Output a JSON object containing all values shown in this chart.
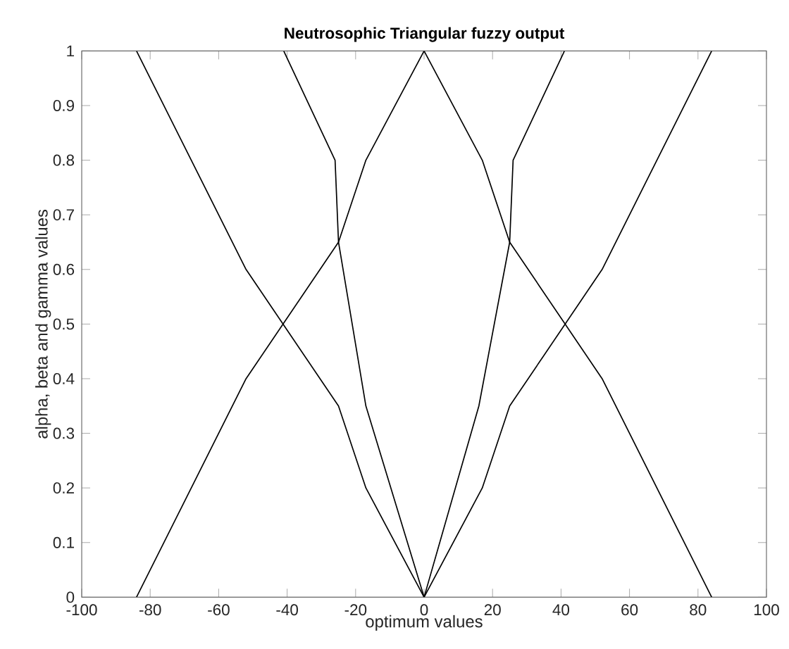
{
  "chart_data": {
    "type": "line",
    "title": "Neutrosophic Triangular fuzzy output",
    "xlabel": "optimum values",
    "ylabel": "alpha, beta and gamma values",
    "xlim": [
      -100,
      100
    ],
    "ylim": [
      0,
      1
    ],
    "xticks": [
      -100,
      -80,
      -60,
      -40,
      -20,
      0,
      20,
      40,
      60,
      80,
      100
    ],
    "yticks": [
      0,
      0.1,
      0.2,
      0.3,
      0.4,
      0.5,
      0.6,
      0.7,
      0.8,
      0.9,
      1
    ],
    "grid": false,
    "marker": "none",
    "line_style": "solid",
    "series": [
      {
        "color": "#000000",
        "x": [
          -84,
          -52,
          -25,
          -17,
          0,
          17,
          25,
          52,
          84
        ],
        "values": [
          0,
          0.4,
          0.65,
          0.8,
          1,
          0.8,
          0.65,
          0.4,
          0
        ]
      },
      {
        "color": "#000000",
        "x": [
          -41,
          -26,
          -25,
          -17,
          0,
          16,
          25,
          26,
          41
        ],
        "values": [
          1,
          0.8,
          0.65,
          0.35,
          0,
          0.35,
          0.65,
          0.8,
          1
        ]
      },
      {
        "color": "#000000",
        "x": [
          -84,
          -52,
          -25,
          -17,
          0,
          17,
          25,
          52,
          84
        ],
        "values": [
          1,
          0.6,
          0.35,
          0.2,
          0,
          0.2,
          0.35,
          0.6,
          1
        ]
      }
    ]
  }
}
